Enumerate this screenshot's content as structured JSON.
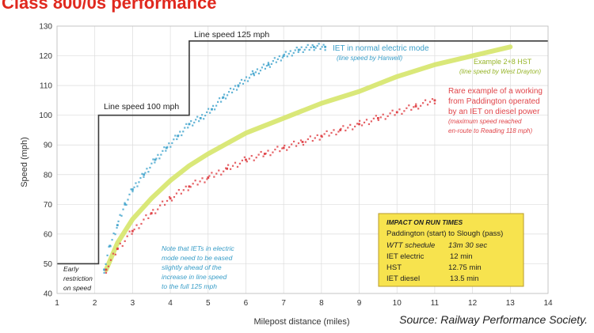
{
  "page": {
    "title": "Class 800/0s performance",
    "source": "Source: Railway Performance Society."
  },
  "chart_data": {
    "type": "line",
    "xlabel": "Milepost distance (miles)",
    "ylabel": "Speed (mph)",
    "xlim": [
      1,
      14
    ],
    "ylim": [
      40,
      130
    ],
    "x_ticks": [
      1,
      2,
      3,
      4,
      5,
      6,
      7,
      8,
      9,
      10,
      11,
      12,
      13,
      14
    ],
    "y_ticks": [
      40,
      50,
      60,
      70,
      80,
      90,
      100,
      110,
      120,
      130
    ],
    "grid": true,
    "colors": {
      "line_speed": "#3a3a3a",
      "iet_electric": "#4aa8cf",
      "hst": "#d6e66a",
      "iet_diesel": "#e0454a",
      "impact_box_bg": "#f7e34e",
      "impact_box_border": "#b89b2a",
      "grid": "#dcdcdc"
    },
    "series": [
      {
        "key": "line_speed",
        "style": "step",
        "x": [
          1.0,
          2.1,
          2.1,
          4.5,
          4.5,
          14.0
        ],
        "y": [
          50,
          50,
          100,
          100,
          125,
          125
        ]
      },
      {
        "key": "iet_electric",
        "style": "dots",
        "x": [
          2.25,
          2.4,
          2.6,
          2.8,
          3.0,
          3.3,
          3.6,
          3.9,
          4.2,
          4.5,
          4.8,
          5.1,
          5.4,
          5.8,
          6.2,
          6.6,
          7.0,
          7.4,
          7.8,
          8.1
        ],
        "y": [
          48,
          56,
          63,
          70,
          75,
          80,
          85,
          89,
          93,
          97,
          99,
          102,
          106,
          110,
          114,
          117,
          120,
          122,
          123,
          123
        ]
      },
      {
        "key": "hst",
        "style": "band",
        "x": [
          2.3,
          2.6,
          3.0,
          3.5,
          4.0,
          4.5,
          5.0,
          6.0,
          7.0,
          8.0,
          9.0,
          10.0,
          11.0,
          12.0,
          13.0
        ],
        "y": [
          48,
          57,
          65,
          72,
          78,
          83,
          87,
          94,
          99,
          104,
          108,
          113,
          117,
          120,
          123
        ]
      },
      {
        "key": "iet_diesel",
        "style": "dots",
        "x": [
          2.3,
          2.6,
          3.0,
          3.5,
          4.0,
          4.5,
          5.0,
          5.5,
          6.0,
          6.5,
          7.0,
          7.5,
          8.0,
          8.5,
          9.0,
          9.5,
          10.0,
          10.5,
          11.0
        ],
        "y": [
          48,
          55,
          61,
          67,
          72,
          76,
          79,
          82,
          85,
          87,
          89,
          91,
          93,
          95,
          97,
          99,
          101,
          103,
          105
        ]
      }
    ],
    "annotations": {
      "line_speed_100": "Line speed 100 mph",
      "line_speed_125": "Line speed 125 mph",
      "iet_electric_line1": "IET in normal electric mode",
      "iet_electric_line2": "(line speed by Hanwell)",
      "hst_line1": "Example 2+8 HST",
      "hst_line2": "(line speed by West Drayton)",
      "diesel_line1": "Rare example of a working",
      "diesel_line2": "from Paddington operated",
      "diesel_line3": "by an IET on diesel power",
      "diesel_line4": "(maximum speed reached",
      "diesel_line5": "en-route to Reading 118 mph)",
      "early_line1": "Early",
      "early_line2": "restriction",
      "early_line3": "on speed",
      "note_line1": "Note that IETs in electric",
      "note_line2": "mode need to be eased",
      "note_line3": "slightly ahead of the",
      "note_line4": "increase in line speed",
      "note_line5": "to the full 125 mph"
    },
    "impact_box": {
      "title": "IMPACT ON RUN TIMES",
      "subtitle": "Paddington (start) to Slough (pass)",
      "rows": [
        {
          "label": "WTT schedule",
          "value": "13m 30 sec"
        },
        {
          "label": "IET electric",
          "value": "12 min"
        },
        {
          "label": "HST",
          "value": "12.75 min"
        },
        {
          "label": "IET diesel",
          "value": "13.5 min"
        }
      ]
    }
  }
}
